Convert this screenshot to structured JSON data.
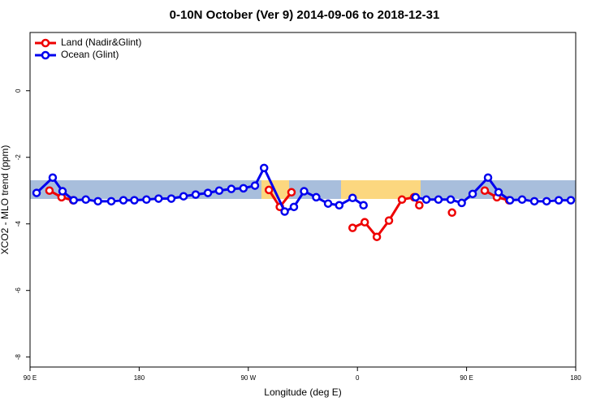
{
  "chart_data": {
    "type": "line",
    "title": "0-10N October (Ver 9)   2014-09-06 to 2018-12-31",
    "x_label": "Longitude (deg E)",
    "y_label": "XCO2 - MLO trend (ppm)",
    "xlim": [
      90,
      540
    ],
    "xticks": [
      {
        "value": 90,
        "label": "90 E"
      },
      {
        "value": 180,
        "label": "180"
      },
      {
        "value": 270,
        "label": "90 W"
      },
      {
        "value": 360,
        "label": "0"
      },
      {
        "value": 450,
        "label": "90 E"
      },
      {
        "value": 540,
        "label": "180"
      }
    ],
    "ylim": [
      -8.3,
      1.75
    ],
    "yticks": [
      0,
      -2,
      -4,
      -6,
      -8
    ],
    "grid": false,
    "legend": "top-left",
    "series": [
      {
        "name": "Land (Nadir&Glint)",
        "color": "#ee0000",
        "x": [
          106,
          116,
          125.5,
          200,
          287,
          296,
          305.6,
          330,
          356,
          366,
          376,
          386,
          396.7,
          406.7,
          411,
          425,
          438,
          450,
          465,
          475,
          485
        ],
        "values": [
          -3.0,
          -3.2,
          -3.29,
          null,
          -2.98,
          -3.49,
          -3.05,
          null,
          -4.12,
          -3.95,
          -4.39,
          -3.9,
          -3.27,
          -3.2,
          -3.44,
          null,
          -3.66,
          null,
          -3.0,
          -3.2,
          -3.29
        ]
      },
      {
        "name": "Ocean (Glint)",
        "color": "#0000ee",
        "x": [
          95.4,
          108.7,
          116.8,
          126,
          136,
          146,
          157,
          167,
          176,
          186,
          196,
          206.5,
          216.6,
          226.6,
          236.7,
          246,
          256,
          266,
          275.5,
          283,
          300,
          307.6,
          316,
          326,
          335.8,
          345,
          356,
          365,
          385,
          408,
          416.8,
          426.8,
          436.9,
          446,
          455,
          467.7,
          476.4,
          485.8,
          495.8,
          505.9,
          516,
          526,
          536
        ],
        "values": [
          -3.07,
          -2.61,
          -3.02,
          -3.29,
          -3.27,
          -3.32,
          -3.32,
          -3.29,
          -3.29,
          -3.27,
          -3.24,
          -3.24,
          -3.17,
          -3.12,
          -3.07,
          -3.0,
          -2.95,
          -2.93,
          -2.85,
          -2.32,
          -3.63,
          -3.49,
          -3.02,
          -3.2,
          -3.39,
          -3.44,
          -3.22,
          -3.44,
          null,
          -3.2,
          -3.27,
          -3.27,
          -3.27,
          -3.37,
          -3.1,
          -2.61,
          -3.05,
          -3.29,
          -3.27,
          -3.32,
          -3.32,
          -3.29,
          -3.29
        ]
      }
    ]
  }
}
